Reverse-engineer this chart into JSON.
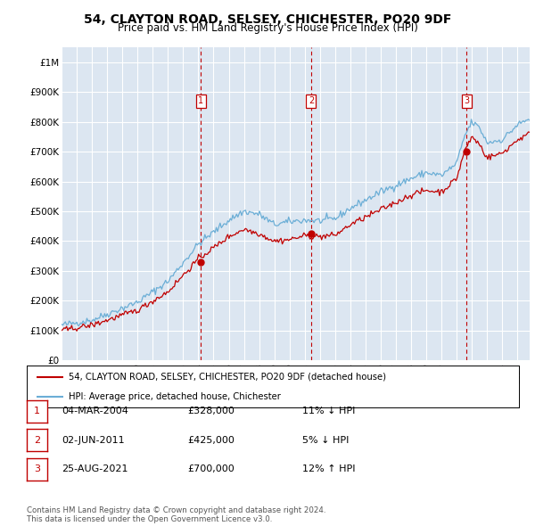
{
  "title": "54, CLAYTON ROAD, SELSEY, CHICHESTER, PO20 9DF",
  "subtitle": "Price paid vs. HM Land Registry's House Price Index (HPI)",
  "ylabel_ticks": [
    "£0",
    "£100K",
    "£200K",
    "£300K",
    "£400K",
    "£500K",
    "£600K",
    "£700K",
    "£800K",
    "£900K",
    "£1M"
  ],
  "ytick_values": [
    0,
    100000,
    200000,
    300000,
    400000,
    500000,
    600000,
    700000,
    800000,
    900000,
    1000000
  ],
  "ylim": [
    0,
    1050000
  ],
  "xlim_start": 1995.0,
  "xlim_end": 2025.8,
  "sale_dates": [
    2004.17,
    2011.42,
    2021.65
  ],
  "sale_prices": [
    328000,
    425000,
    700000
  ],
  "sale_labels": [
    "1",
    "2",
    "3"
  ],
  "legend_line1": "54, CLAYTON ROAD, SELSEY, CHICHESTER, PO20 9DF (detached house)",
  "legend_line2": "HPI: Average price, detached house, Chichester",
  "table_rows": [
    [
      "1",
      "04-MAR-2004",
      "£328,000",
      "11% ↓ HPI"
    ],
    [
      "2",
      "02-JUN-2011",
      "£425,000",
      "5% ↓ HPI"
    ],
    [
      "3",
      "25-AUG-2021",
      "£700,000",
      "12% ↑ HPI"
    ]
  ],
  "footer": "Contains HM Land Registry data © Crown copyright and database right 2024.\nThis data is licensed under the Open Government Licence v3.0.",
  "hpi_color": "#6baed6",
  "price_color": "#c00000",
  "background_color": "#dce6f1",
  "grid_color": "#ffffff",
  "title_fontsize": 10,
  "subtitle_fontsize": 8.5
}
